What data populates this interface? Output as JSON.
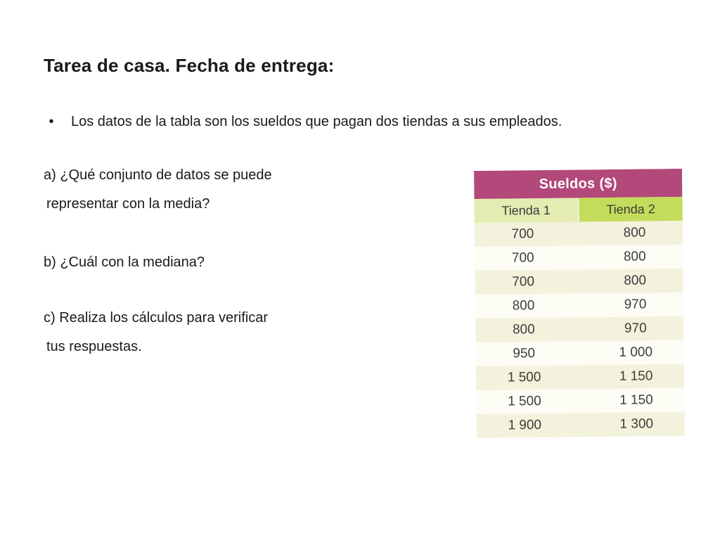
{
  "slide": {
    "title": "Tarea de casa. Fecha de entrega:",
    "bullet_symbol": "•",
    "bullet_text": "Los datos de la tabla son los sueldos que pagan dos tiendas a sus empleados.",
    "questions": {
      "a_line1": "a) ¿Qué conjunto de datos se puede",
      "a_line2": "representar con la media?",
      "b": "b) ¿Cuál con la mediana?",
      "c_line1": "c) Realiza los cálculos para verificar",
      "c_line2": "tus respuestas."
    }
  },
  "table": {
    "title": "Sueldos ($)",
    "columns": [
      "Tienda 1",
      "Tienda 2"
    ],
    "rows": [
      [
        "700",
        "800"
      ],
      [
        "700",
        "800"
      ],
      [
        "700",
        "800"
      ],
      [
        "800",
        "970"
      ],
      [
        "800",
        "970"
      ],
      [
        "950",
        "1 000"
      ],
      [
        "1 500",
        "1 150"
      ],
      [
        "1 500",
        "1 150"
      ],
      [
        "1 900",
        "1 300"
      ]
    ],
    "colors": {
      "header": "#b3487a",
      "col1_header": "#e4ecb2",
      "col2_header": "#c4dc5c"
    }
  }
}
